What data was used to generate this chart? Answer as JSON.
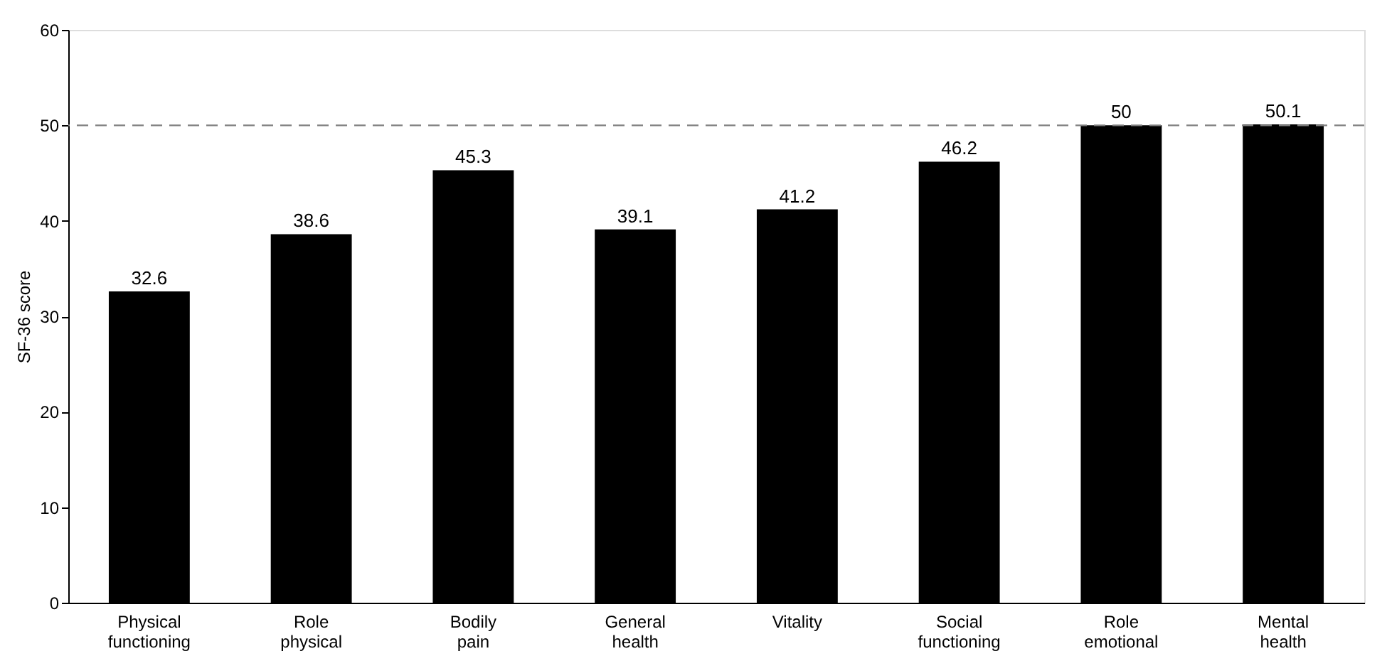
{
  "chart_data": {
    "type": "bar",
    "ylabel": "SF-36 score",
    "categories": [
      "Physical functioning",
      "Role physical",
      "Bodily pain",
      "General health",
      "Vitality",
      "Social functioning",
      "Role emotional",
      "Mental health"
    ],
    "values": [
      32.6,
      38.6,
      45.3,
      39.1,
      41.2,
      46.2,
      50,
      50.1
    ],
    "color": "#000000",
    "ylim": [
      0,
      60
    ],
    "yticks": [
      0,
      10,
      20,
      30,
      40,
      50,
      60
    ],
    "grid": false,
    "data_labels": true,
    "ref_lines": [
      {
        "axis": "y",
        "value": 50,
        "color": "#808080",
        "line_style": "dashed"
      }
    ]
  }
}
